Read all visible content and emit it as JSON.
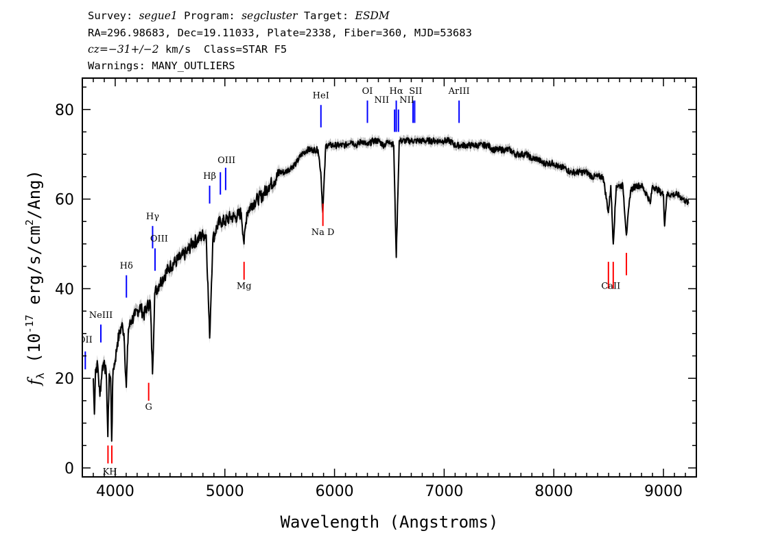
{
  "header": {
    "line1": {
      "survey_k": "Survey: ",
      "survey_v": "segue1",
      "program_k": " Program: ",
      "program_v": "segcluster",
      "target_k": " Target: ",
      "target_v": "ESDM"
    },
    "line2": "RA=296.98683, Dec=19.11033, Plate=2338, Fiber=360, MJD=53683",
    "line3": {
      "cz_k": "cz",
      "cz_v": "=−31+/−2",
      "rest": " km/s  Class=STAR F5"
    },
    "line4": "Warnings: MANY_OUTLIERS"
  },
  "chart_data": {
    "type": "line",
    "xlabel": "Wavelength (Angstroms)",
    "ylabel": "f_λ (10^-17 erg/s/cm^2/Ang)",
    "xlim": [
      3700,
      9300
    ],
    "ylim": [
      -2,
      87
    ],
    "xticks": [
      4000,
      5000,
      6000,
      7000,
      8000,
      9000
    ],
    "yticks": [
      0,
      20,
      40,
      60,
      80
    ],
    "grid": false,
    "colors": {
      "spectrum": "#000000",
      "error_band": "#b8b8b8",
      "emission": "#0000ff",
      "absorption": "#ff0000"
    },
    "series": [
      {
        "values": [
          [
            3800,
            20
          ],
          [
            3810,
            12
          ],
          [
            3820,
            22
          ],
          [
            3840,
            23
          ],
          [
            3860,
            16
          ],
          [
            3880,
            22
          ],
          [
            3900,
            24
          ],
          [
            3920,
            20
          ],
          [
            3933,
            7
          ],
          [
            3945,
            21
          ],
          [
            3958,
            20
          ],
          [
            3968,
            6
          ],
          [
            3980,
            22
          ],
          [
            4000,
            24
          ],
          [
            4020,
            28
          ],
          [
            4040,
            30
          ],
          [
            4060,
            32
          ],
          [
            4080,
            30
          ],
          [
            4101,
            18
          ],
          [
            4120,
            31
          ],
          [
            4150,
            33
          ],
          [
            4180,
            34
          ],
          [
            4200,
            35
          ],
          [
            4230,
            36
          ],
          [
            4260,
            34
          ],
          [
            4290,
            36
          ],
          [
            4320,
            37
          ],
          [
            4340,
            21
          ],
          [
            4360,
            39
          ],
          [
            4400,
            41
          ],
          [
            4450,
            43
          ],
          [
            4500,
            45
          ],
          [
            4550,
            46
          ],
          [
            4600,
            47
          ],
          [
            4650,
            48
          ],
          [
            4700,
            50
          ],
          [
            4750,
            51
          ],
          [
            4800,
            52
          ],
          [
            4830,
            52
          ],
          [
            4861,
            29
          ],
          [
            4890,
            51
          ],
          [
            4930,
            54
          ],
          [
            4960,
            55
          ],
          [
            5000,
            55
          ],
          [
            5050,
            56
          ],
          [
            5100,
            56
          ],
          [
            5150,
            57
          ],
          [
            5175,
            50
          ],
          [
            5200,
            57
          ],
          [
            5250,
            59
          ],
          [
            5300,
            60
          ],
          [
            5350,
            61
          ],
          [
            5400,
            63
          ],
          [
            5450,
            64
          ],
          [
            5500,
            66
          ],
          [
            5550,
            66
          ],
          [
            5600,
            67
          ],
          [
            5650,
            68
          ],
          [
            5700,
            70
          ],
          [
            5750,
            71
          ],
          [
            5800,
            71
          ],
          [
            5850,
            71
          ],
          [
            5875,
            66
          ],
          [
            5893,
            57
          ],
          [
            5920,
            72
          ],
          [
            5950,
            72
          ],
          [
            6000,
            72
          ],
          [
            6050,
            72
          ],
          [
            6100,
            72
          ],
          [
            6150,
            73
          ],
          [
            6200,
            72
          ],
          [
            6250,
            73
          ],
          [
            6300,
            72
          ],
          [
            6350,
            73
          ],
          [
            6400,
            73
          ],
          [
            6450,
            72
          ],
          [
            6500,
            73
          ],
          [
            6540,
            72
          ],
          [
            6563,
            47
          ],
          [
            6590,
            73
          ],
          [
            6650,
            73
          ],
          [
            6700,
            73
          ],
          [
            6750,
            73
          ],
          [
            6800,
            73
          ],
          [
            6850,
            73
          ],
          [
            6900,
            73
          ],
          [
            6950,
            73
          ],
          [
            7000,
            73
          ],
          [
            7050,
            73
          ],
          [
            7100,
            72
          ],
          [
            7150,
            72
          ],
          [
            7200,
            72
          ],
          [
            7250,
            72
          ],
          [
            7300,
            72
          ],
          [
            7350,
            72
          ],
          [
            7400,
            72
          ],
          [
            7450,
            71
          ],
          [
            7500,
            71
          ],
          [
            7550,
            71
          ],
          [
            7600,
            71
          ],
          [
            7650,
            70
          ],
          [
            7700,
            70
          ],
          [
            7750,
            70
          ],
          [
            7800,
            69
          ],
          [
            7850,
            69
          ],
          [
            7900,
            68
          ],
          [
            7950,
            68
          ],
          [
            8000,
            68
          ],
          [
            8050,
            67
          ],
          [
            8100,
            67
          ],
          [
            8150,
            66
          ],
          [
            8200,
            66
          ],
          [
            8250,
            66
          ],
          [
            8300,
            66
          ],
          [
            8350,
            65
          ],
          [
            8400,
            65
          ],
          [
            8450,
            65
          ],
          [
            8498,
            57
          ],
          [
            8520,
            63
          ],
          [
            8542,
            50
          ],
          [
            8570,
            63
          ],
          [
            8600,
            63
          ],
          [
            8630,
            63
          ],
          [
            8662,
            52
          ],
          [
            8700,
            62
          ],
          [
            8750,
            63
          ],
          [
            8800,
            63
          ],
          [
            8850,
            61
          ],
          [
            8880,
            59
          ],
          [
            8900,
            63
          ],
          [
            8950,
            62
          ],
          [
            9000,
            61
          ],
          [
            9010,
            54
          ],
          [
            9030,
            61
          ],
          [
            9080,
            61
          ],
          [
            9130,
            61
          ],
          [
            9180,
            60
          ],
          [
            9230,
            59
          ]
        ]
      }
    ],
    "emission_lines": [
      {
        "label": "OII",
        "lambda": 3727,
        "y1": 22,
        "y2": 26
      },
      {
        "label": "NeIII",
        "lambda": 3869,
        "y1": 28,
        "y2": 32
      },
      {
        "label": "Hδ",
        "lambda": 4102,
        "y1": 38,
        "y2": 43
      },
      {
        "label": "Hγ",
        "lambda": 4341,
        "y1": 49,
        "y2": 54
      },
      {
        "label": "OIII",
        "lambda": 4363,
        "y1": 44,
        "y2": 49
      },
      {
        "label": "Hβ",
        "lambda": 4861,
        "y1": 59,
        "y2": 63
      },
      {
        "label": "OIII",
        "lambda": 4959,
        "y1": 61,
        "y2": 66
      },
      {
        "label": "OIII",
        "lambda": 5007,
        "y1": 62,
        "y2": 67
      },
      {
        "label": "HeI",
        "lambda": 5876,
        "y1": 76,
        "y2": 81
      },
      {
        "label": "OI",
        "lambda": 6300,
        "y1": 77,
        "y2": 82
      },
      {
        "label": "NII",
        "lambda": 6548,
        "y1": 75,
        "y2": 80
      },
      {
        "label": "Hα",
        "lambda": 6563,
        "y1": 75,
        "y2": 82
      },
      {
        "label": "NII",
        "lambda": 6583,
        "y1": 75,
        "y2": 80
      },
      {
        "label": "SII",
        "lambda": 6716,
        "y1": 77,
        "y2": 82
      },
      {
        "label": "SII",
        "lambda": 6731,
        "y1": 77,
        "y2": 82
      },
      {
        "label": "ArIII",
        "lambda": 7136,
        "y1": 77,
        "y2": 82
      }
    ],
    "absorption_lines": [
      {
        "label": "K",
        "lambda": 3934,
        "y1": 1,
        "y2": 5
      },
      {
        "label": "H",
        "lambda": 3969,
        "y1": 1,
        "y2": 5
      },
      {
        "label": "G",
        "lambda": 4305,
        "y1": 15,
        "y2": 19
      },
      {
        "label": "Mg",
        "lambda": 5175,
        "y1": 42,
        "y2": 46
      },
      {
        "label": "Na D",
        "lambda": 5894,
        "y1": 54,
        "y2": 59
      },
      {
        "label": "CaII",
        "lambda": 8498,
        "y1": 40,
        "y2": 46
      },
      {
        "label": "CaII",
        "lambda": 8542,
        "y1": 40,
        "y2": 46
      },
      {
        "label": "CaII",
        "lambda": 8662,
        "y1": 43,
        "y2": 48
      }
    ],
    "text_labels": [
      {
        "text": "OII",
        "lambda": 3727,
        "y": 28
      },
      {
        "text": "NeIII",
        "lambda": 3869,
        "y": 33.5
      },
      {
        "text": "Hδ",
        "lambda": 4102,
        "y": 44.5
      },
      {
        "text": "Hγ",
        "lambda": 4341,
        "y": 55.5
      },
      {
        "text": "OIII",
        "lambda": 4400,
        "y": 50.5
      },
      {
        "text": "Hβ",
        "lambda": 4861,
        "y": 64.5
      },
      {
        "text": "OIII",
        "lambda": 5015,
        "y": 68
      },
      {
        "text": "HeI",
        "lambda": 5876,
        "y": 82.5
      },
      {
        "text": "OI",
        "lambda": 6300,
        "y": 83.5
      },
      {
        "text": "NII",
        "lambda": 6430,
        "y": 81.5
      },
      {
        "text": "Hα",
        "lambda": 6563,
        "y": 83.5
      },
      {
        "text": "NII",
        "lambda": 6660,
        "y": 81.5
      },
      {
        "text": "SII",
        "lambda": 6740,
        "y": 83.5
      },
      {
        "text": "ArIII",
        "lambda": 7136,
        "y": 83.5
      },
      {
        "text": "KH",
        "lambda": 3951,
        "y": -1.5
      },
      {
        "text": "G",
        "lambda": 4305,
        "y": 13
      },
      {
        "text": "Mg",
        "lambda": 5175,
        "y": 40
      },
      {
        "text": "Na D",
        "lambda": 5894,
        "y": 52
      },
      {
        "text": "CaII",
        "lambda": 8520,
        "y": 40
      }
    ]
  }
}
